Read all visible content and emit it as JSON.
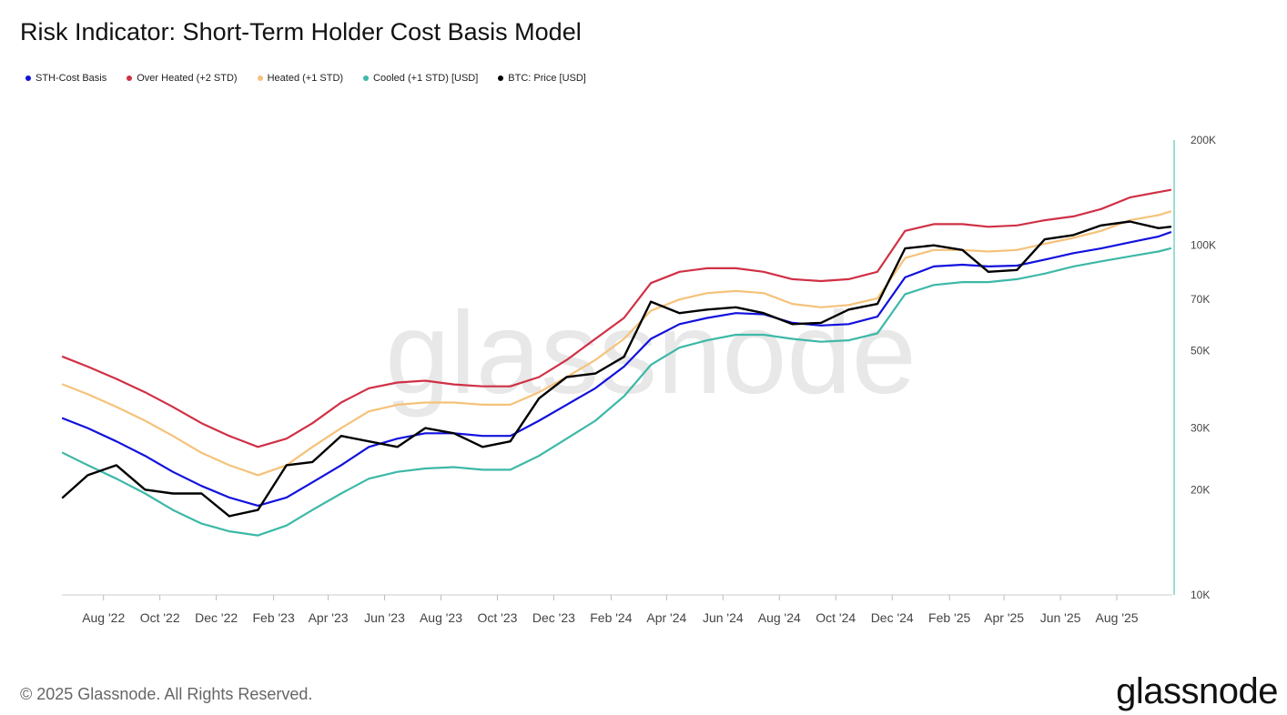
{
  "title": "Risk Indicator: Short-Term Holder Cost Basis Model",
  "footer": "© 2025 Glassnode. All Rights Reserved.",
  "brand": "glassnode",
  "watermark": "glassnode",
  "legend": [
    {
      "label": "STH-Cost Basis",
      "color": "#1111dd"
    },
    {
      "label": "Over Heated (+2 STD)",
      "color": "#d03045"
    },
    {
      "label": "Heated (+1 STD)",
      "color": "#f5c27a"
    },
    {
      "label": "Cooled (+1 STD) [USD]",
      "color": "#3db8a8"
    },
    {
      "label": "BTC: Price [USD]",
      "color": "#000000"
    }
  ],
  "chart_data": {
    "type": "line",
    "title": "Risk Indicator: Short-Term Holder Cost Basis Model",
    "y_scale": "log",
    "ylim": [
      10000,
      200000
    ],
    "y_ticks": [
      {
        "value": 10000,
        "label": "10K"
      },
      {
        "value": 20000,
        "label": "20K"
      },
      {
        "value": 30000,
        "label": "30K"
      },
      {
        "value": 50000,
        "label": "50K"
      },
      {
        "value": 70000,
        "label": "70K"
      },
      {
        "value": 100000,
        "label": "100K"
      },
      {
        "value": 200000,
        "label": "200K"
      }
    ],
    "xlim": [
      "2022-06-17",
      "2025-09-30"
    ],
    "x_ticks": [
      {
        "date": "2022-08-01",
        "label": "Aug '22"
      },
      {
        "date": "2022-10-01",
        "label": "Oct '22"
      },
      {
        "date": "2022-12-01",
        "label": "Dec '22"
      },
      {
        "date": "2023-02-01",
        "label": "Feb '23"
      },
      {
        "date": "2023-04-01",
        "label": "Apr '23"
      },
      {
        "date": "2023-06-01",
        "label": "Jun '23"
      },
      {
        "date": "2023-08-01",
        "label": "Aug '23"
      },
      {
        "date": "2023-10-01",
        "label": "Oct '23"
      },
      {
        "date": "2023-12-01",
        "label": "Dec '23"
      },
      {
        "date": "2024-02-01",
        "label": "Feb '24"
      },
      {
        "date": "2024-04-01",
        "label": "Apr '24"
      },
      {
        "date": "2024-06-01",
        "label": "Jun '24"
      },
      {
        "date": "2024-08-01",
        "label": "Aug '24"
      },
      {
        "date": "2024-10-01",
        "label": "Oct '24"
      },
      {
        "date": "2024-12-01",
        "label": "Dec '24"
      },
      {
        "date": "2025-02-01",
        "label": "Feb '25"
      },
      {
        "date": "2025-04-01",
        "label": "Apr '25"
      },
      {
        "date": "2025-06-01",
        "label": "Jun '25"
      },
      {
        "date": "2025-08-01",
        "label": "Aug '25"
      }
    ],
    "x": [
      "2022-06-18",
      "2022-07-15",
      "2022-08-15",
      "2022-09-15",
      "2022-10-15",
      "2022-11-15",
      "2022-12-15",
      "2023-01-15",
      "2023-02-15",
      "2023-03-15",
      "2023-04-15",
      "2023-05-15",
      "2023-06-15",
      "2023-07-15",
      "2023-08-15",
      "2023-09-15",
      "2023-10-15",
      "2023-11-15",
      "2023-12-15",
      "2024-01-15",
      "2024-02-15",
      "2024-03-15",
      "2024-04-15",
      "2024-05-15",
      "2024-06-15",
      "2024-07-15",
      "2024-08-15",
      "2024-09-15",
      "2024-10-15",
      "2024-11-15",
      "2024-12-15",
      "2025-01-15",
      "2025-02-15",
      "2025-03-15",
      "2025-04-15",
      "2025-05-15",
      "2025-06-15",
      "2025-07-15",
      "2025-08-15",
      "2025-09-15",
      "2025-09-28"
    ],
    "series": [
      {
        "name": "Over Heated (+2 STD)",
        "color": "#d03045",
        "values": [
          48000,
          45000,
          41500,
          38000,
          34500,
          31000,
          28500,
          26500,
          28000,
          31000,
          35500,
          39000,
          40500,
          41000,
          40000,
          39500,
          39500,
          42000,
          47000,
          54000,
          62000,
          78000,
          84000,
          86000,
          86000,
          84000,
          80000,
          79000,
          80000,
          84000,
          110000,
          115000,
          115000,
          113000,
          114000,
          118000,
          121000,
          127000,
          137000,
          142000,
          144000
        ]
      },
      {
        "name": "Heated (+1 STD)",
        "color": "#f5c27a",
        "values": [
          40000,
          37500,
          34500,
          31500,
          28500,
          25500,
          23500,
          22000,
          23500,
          26500,
          30000,
          33500,
          35000,
          35500,
          35500,
          35000,
          35000,
          38000,
          42000,
          47000,
          54000,
          65000,
          70000,
          73000,
          74000,
          73000,
          68000,
          66500,
          67500,
          70500,
          92000,
          97000,
          97000,
          96000,
          97000,
          101000,
          105000,
          110000,
          118000,
          122000,
          125000
        ]
      },
      {
        "name": "STH-Cost Basis",
        "color": "#1111dd",
        "values": [
          32000,
          30000,
          27500,
          25000,
          22500,
          20500,
          19000,
          18000,
          19000,
          21000,
          23500,
          26500,
          28000,
          29000,
          29000,
          28500,
          28500,
          31500,
          35000,
          39000,
          45000,
          54000,
          59500,
          62000,
          64000,
          63500,
          60000,
          59000,
          59500,
          62500,
          81000,
          87000,
          88000,
          87000,
          87500,
          91000,
          95000,
          98000,
          102000,
          106000,
          109000
        ]
      },
      {
        "name": "Cooled (+1 STD) [USD]",
        "color": "#3db8a8",
        "values": [
          25500,
          23500,
          21500,
          19500,
          17500,
          16000,
          15200,
          14800,
          15800,
          17500,
          19500,
          21500,
          22500,
          23000,
          23200,
          22800,
          22800,
          25000,
          28000,
          31500,
          37000,
          45500,
          51000,
          53500,
          55500,
          55500,
          54000,
          53000,
          53500,
          56000,
          72500,
          77000,
          78500,
          78500,
          80000,
          83000,
          87000,
          90000,
          93000,
          96000,
          98000
        ]
      },
      {
        "name": "BTC: Price [USD]",
        "color": "#000000",
        "values": [
          19000,
          22000,
          23500,
          20000,
          19500,
          19500,
          16800,
          17500,
          23500,
          24000,
          28500,
          27500,
          26500,
          30000,
          29000,
          26500,
          27500,
          36500,
          42000,
          43000,
          48000,
          69000,
          64000,
          65500,
          66500,
          64000,
          59500,
          60000,
          65500,
          68000,
          98000,
          100000,
          97000,
          84000,
          85000,
          104000,
          107000,
          114000,
          117000,
          112000,
          113000
        ]
      }
    ]
  }
}
